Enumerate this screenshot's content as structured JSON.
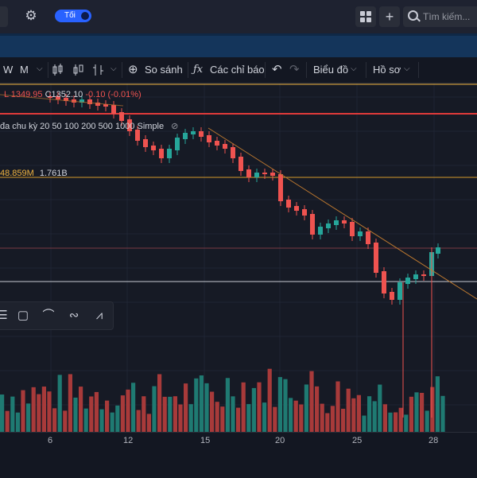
{
  "header": {
    "theme_toggle_label": "Tối",
    "search_placeholder": "Tìm kiếm..."
  },
  "toolbar": {
    "intervals": [
      "W",
      "M"
    ],
    "compare_label": "So sánh",
    "indicators_label": "Các chỉ báo",
    "chart_label": "Biểu đồ",
    "profile_label": "Hồ sơ"
  },
  "legend": {
    "ohlc_low": "L 1349.95",
    "ohlc_close": "C1352.10",
    "ohlc_change": "-0.10 (-0.01%)",
    "ma_label": "đa chu kỳ 20 50 100 200 500 1000 Simple",
    "volume_a": "48.859M",
    "volume_b": "1.761B"
  },
  "x_axis_labels": [
    "6",
    "12",
    "15",
    "20",
    "25",
    "28"
  ],
  "colors": {
    "up": "#26a69a",
    "down": "#ef5350",
    "accent": "#2962ff",
    "vol_up": "#1f7a72",
    "vol_down": "#a83a3a"
  }
}
